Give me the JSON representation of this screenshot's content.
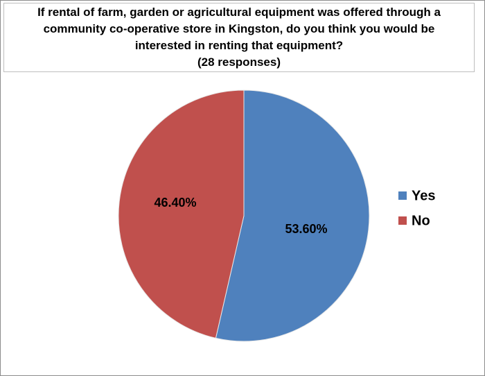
{
  "chart_data": {
    "type": "pie",
    "title": "If rental of farm, garden or agricultural equipment was offered through a\ncommunity co-operative store in Kingston, do you think you would be\ninterested in renting that equipment?\n(28 responses)",
    "categories": [
      "Yes",
      "No"
    ],
    "values": [
      53.6,
      46.4
    ],
    "labels": [
      "53.60%",
      "46.40%"
    ],
    "colors": [
      "#4f81bd",
      "#c0504d"
    ],
    "legend": {
      "placement": "right",
      "entries": [
        "Yes",
        "No"
      ]
    }
  }
}
